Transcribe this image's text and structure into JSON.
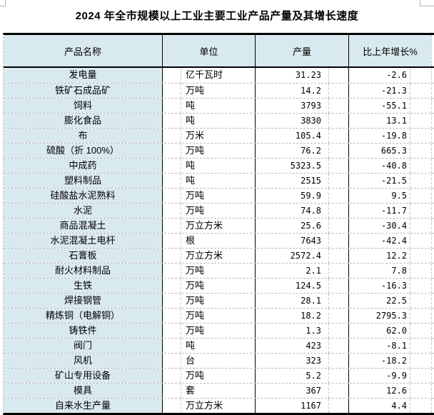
{
  "title": "2024 年全市规模以上工业主要工业产品产量及其增长速度",
  "colors": {
    "header_bg": "#d9e9f0",
    "border_solid": "#000000",
    "grid_dashed": "#bdbdbd"
  },
  "table": {
    "headers": [
      "产品名称",
      "单位",
      "产量",
      "比上年增长%"
    ],
    "rows": [
      {
        "name": "发电量",
        "unit": "亿千瓦时",
        "output": "31.23",
        "growth": "-2.6"
      },
      {
        "name": "铁矿石成品矿",
        "unit": "万吨",
        "output": "14.2",
        "growth": "-21.3"
      },
      {
        "name": "饲料",
        "unit": "吨",
        "output": "3793",
        "growth": "-55.1"
      },
      {
        "name": "膨化食品",
        "unit": "吨",
        "output": "3830",
        "growth": "13.1"
      },
      {
        "name": "布",
        "unit": "万米",
        "output": "105.4",
        "growth": "-19.8"
      },
      {
        "name": "硫酸（折 100%）",
        "unit": "万吨",
        "output": "76.2",
        "growth": "665.3"
      },
      {
        "name": "中成药",
        "unit": "吨",
        "output": "5323.5",
        "growth": "-40.8"
      },
      {
        "name": "塑料制品",
        "unit": "吨",
        "output": "2515",
        "growth": "-21.5"
      },
      {
        "name": "硅酸盐水泥熟料",
        "unit": "万吨",
        "output": "59.9",
        "growth": "9.5"
      },
      {
        "name": "水泥",
        "unit": "万吨",
        "output": "74.8",
        "growth": "-11.7"
      },
      {
        "name": "商品混凝土",
        "unit": "万立方米",
        "output": "25.6",
        "growth": "-30.4"
      },
      {
        "name": "水泥混凝土电杆",
        "unit": "根",
        "output": "7643",
        "growth": "-42.4"
      },
      {
        "name": "石膏板",
        "unit": "万立方米",
        "output": "2572.4",
        "growth": "12.2"
      },
      {
        "name": "耐火材料制品",
        "unit": "万吨",
        "output": "2.1",
        "growth": "7.8"
      },
      {
        "name": "生铁",
        "unit": "万吨",
        "output": "124.5",
        "growth": "-16.3"
      },
      {
        "name": "焊接钢管",
        "unit": "万吨",
        "output": "28.1",
        "growth": "22.5"
      },
      {
        "name": "精炼铜（电解铜）",
        "unit": "万吨",
        "output": "18.2",
        "growth": "2795.3"
      },
      {
        "name": "铸铁件",
        "unit": "万吨",
        "output": "1.3",
        "growth": "62.0"
      },
      {
        "name": "阀门",
        "unit": "吨",
        "output": "423",
        "growth": "-8.1"
      },
      {
        "name": "风机",
        "unit": "台",
        "output": "323",
        "growth": "-18.2"
      },
      {
        "name": "矿山专用设备",
        "unit": "万吨",
        "output": "5.2",
        "growth": "-9.9"
      },
      {
        "name": "模具",
        "unit": "套",
        "output": "367",
        "growth": "12.6"
      },
      {
        "name": "自来水生产量",
        "unit": "万立方米",
        "output": "1167",
        "growth": "4.4"
      }
    ]
  }
}
